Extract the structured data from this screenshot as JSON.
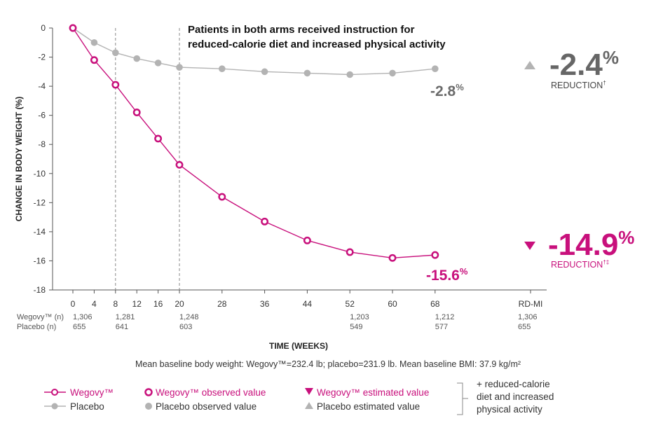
{
  "annotation": {
    "line1": "Patients in both arms received instruction for",
    "line2": "reduced-calorie diet and increased physical activity"
  },
  "summary": {
    "placebo": {
      "value": "-2.4",
      "unit": "%",
      "label": "REDUCTION",
      "mark": "†",
      "color": "#666666"
    },
    "wegovy": {
      "value": "-14.9",
      "unit": "%",
      "label": "REDUCTION",
      "mark": "†‡",
      "color": "#c8107c"
    }
  },
  "endpoint_labels": {
    "placebo": {
      "value": "-2.8",
      "unit": "%"
    },
    "wegovy": {
      "value": "-15.6",
      "unit": "%"
    }
  },
  "n_table": {
    "wegovy_label": "Wegovy™ (n)",
    "placebo_label": "Placebo (n)",
    "columns": [
      {
        "x": 0,
        "wegovy": "1,306",
        "placebo": "655"
      },
      {
        "x": 8,
        "wegovy": "1,281",
        "placebo": "641"
      },
      {
        "x": 20,
        "wegovy": "1,248",
        "placebo": "603"
      },
      {
        "x": 52,
        "wegovy": "1,203",
        "placebo": "549"
      },
      {
        "x": 68,
        "wegovy": "1,212",
        "placebo": "577"
      },
      {
        "x": "RD-MI",
        "wegovy": "1,306",
        "placebo": "655"
      }
    ]
  },
  "baseline_note": "Mean baseline body weight: Wegovy™=232.4 lb; placebo=231.9 lb. Mean baseline BMI: 37.9 kg/m²",
  "legend": {
    "wegovy_line": "Wegovy™",
    "placebo_line": "Placebo",
    "wegovy_observed": "Wegovy™ observed value",
    "placebo_observed": "Placebo observed value",
    "wegovy_estimated": "Wegovy™ estimated value",
    "placebo_estimated": "Placebo estimated value",
    "note_line1": "+ reduced-calorie",
    "note_line2": "diet and increased",
    "note_line3": "physical activity"
  },
  "colors": {
    "wegovy": "#c8107c",
    "placebo": "#b3b3b3",
    "axis": "#555555",
    "dashed": "#888888"
  },
  "chart_data": {
    "type": "line",
    "title": "",
    "xlabel": "TIME (WEEKS)",
    "ylabel": "CHANGE IN BODY WEIGHT (%)",
    "ylim": [
      -18,
      0
    ],
    "yticks": [
      0,
      -2,
      -4,
      -6,
      -8,
      -10,
      -12,
      -14,
      -16,
      -18
    ],
    "xticks": [
      0,
      4,
      8,
      12,
      16,
      20,
      28,
      36,
      44,
      52,
      60,
      68
    ],
    "extra_xtick": "RD-MI",
    "reference_lines_x": [
      8,
      20
    ],
    "series": [
      {
        "name": "Placebo",
        "x": [
          0,
          4,
          8,
          12,
          16,
          20,
          28,
          36,
          44,
          52,
          60,
          68
        ],
        "values": [
          0,
          -1.0,
          -1.7,
          -2.1,
          -2.4,
          -2.7,
          -2.8,
          -3.0,
          -3.1,
          -3.2,
          -3.1,
          -2.8
        ]
      },
      {
        "name": "Wegovy™",
        "x": [
          0,
          4,
          8,
          12,
          16,
          20,
          28,
          36,
          44,
          52,
          60,
          68
        ],
        "values": [
          0,
          -2.2,
          -3.9,
          -5.8,
          -7.6,
          -9.4,
          -11.6,
          -13.3,
          -14.6,
          -15.4,
          -15.8,
          -15.6
        ]
      }
    ],
    "estimated": [
      {
        "name": "Placebo",
        "value": -2.4
      },
      {
        "name": "Wegovy™",
        "value": -14.9
      }
    ]
  }
}
